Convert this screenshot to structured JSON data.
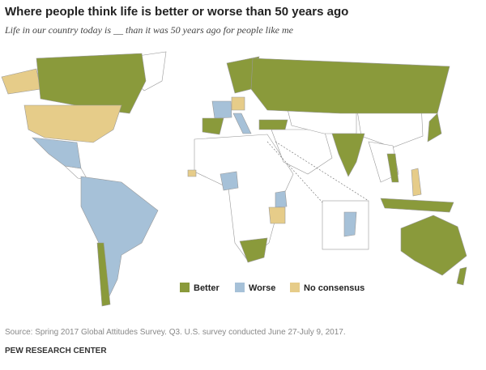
{
  "header": {
    "title": "Where people think life is better or worse than 50 years ago",
    "subtitle": "Life in our country today is __ than it was 50 years ago for people like me"
  },
  "legend": [
    {
      "label": "Better",
      "color": "#8a9a3b"
    },
    {
      "label": "Worse",
      "color": "#a6c1d8"
    },
    {
      "label": "No consensus",
      "color": "#e6cc89"
    }
  ],
  "footer": {
    "source": "Source: Spring 2017 Global Attitudes Survey. Q3. U.S. survey conducted June 27-July 9, 2017.",
    "credit": "PEW RESEARCH CENTER"
  }
}
